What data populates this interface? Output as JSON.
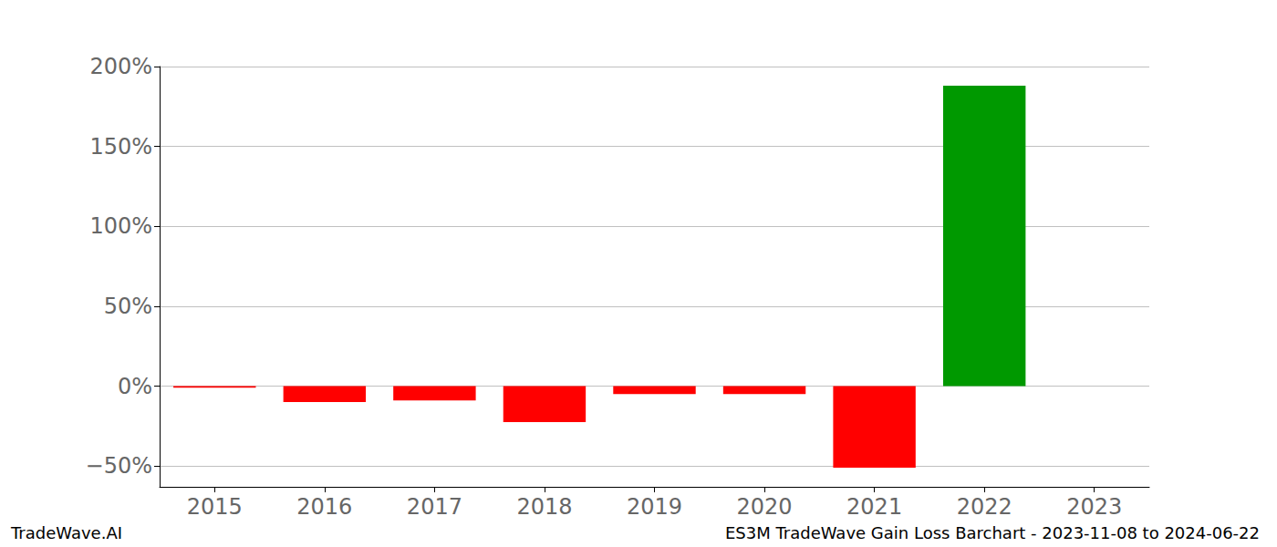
{
  "chart_data": {
    "type": "bar",
    "title": "ES3M TradeWave Gain Loss Barchart - 2023-11-08 to 2024-06-22",
    "annotation": "TradeWave.AI",
    "categories": [
      "2015",
      "2016",
      "2017",
      "2018",
      "2019",
      "2020",
      "2021",
      "2022",
      "2023"
    ],
    "values": [
      -1,
      -10,
      -9,
      -22.5,
      -5,
      -5,
      -51,
      188,
      0
    ],
    "colors": [
      "#ff0000",
      "#ff0000",
      "#ff0000",
      "#ff0000",
      "#ff0000",
      "#ff0000",
      "#ff0000",
      "#009900",
      "#ff0000"
    ],
    "ylim": [
      -63,
      200
    ],
    "yticks": [
      {
        "value": -50,
        "label": "−50%"
      },
      {
        "value": 0,
        "label": "0%"
      },
      {
        "value": 50,
        "label": "50%"
      },
      {
        "value": 100,
        "label": "100%"
      },
      {
        "value": 150,
        "label": "150%"
      },
      {
        "value": 200,
        "label": "200%"
      }
    ],
    "grid": true
  }
}
